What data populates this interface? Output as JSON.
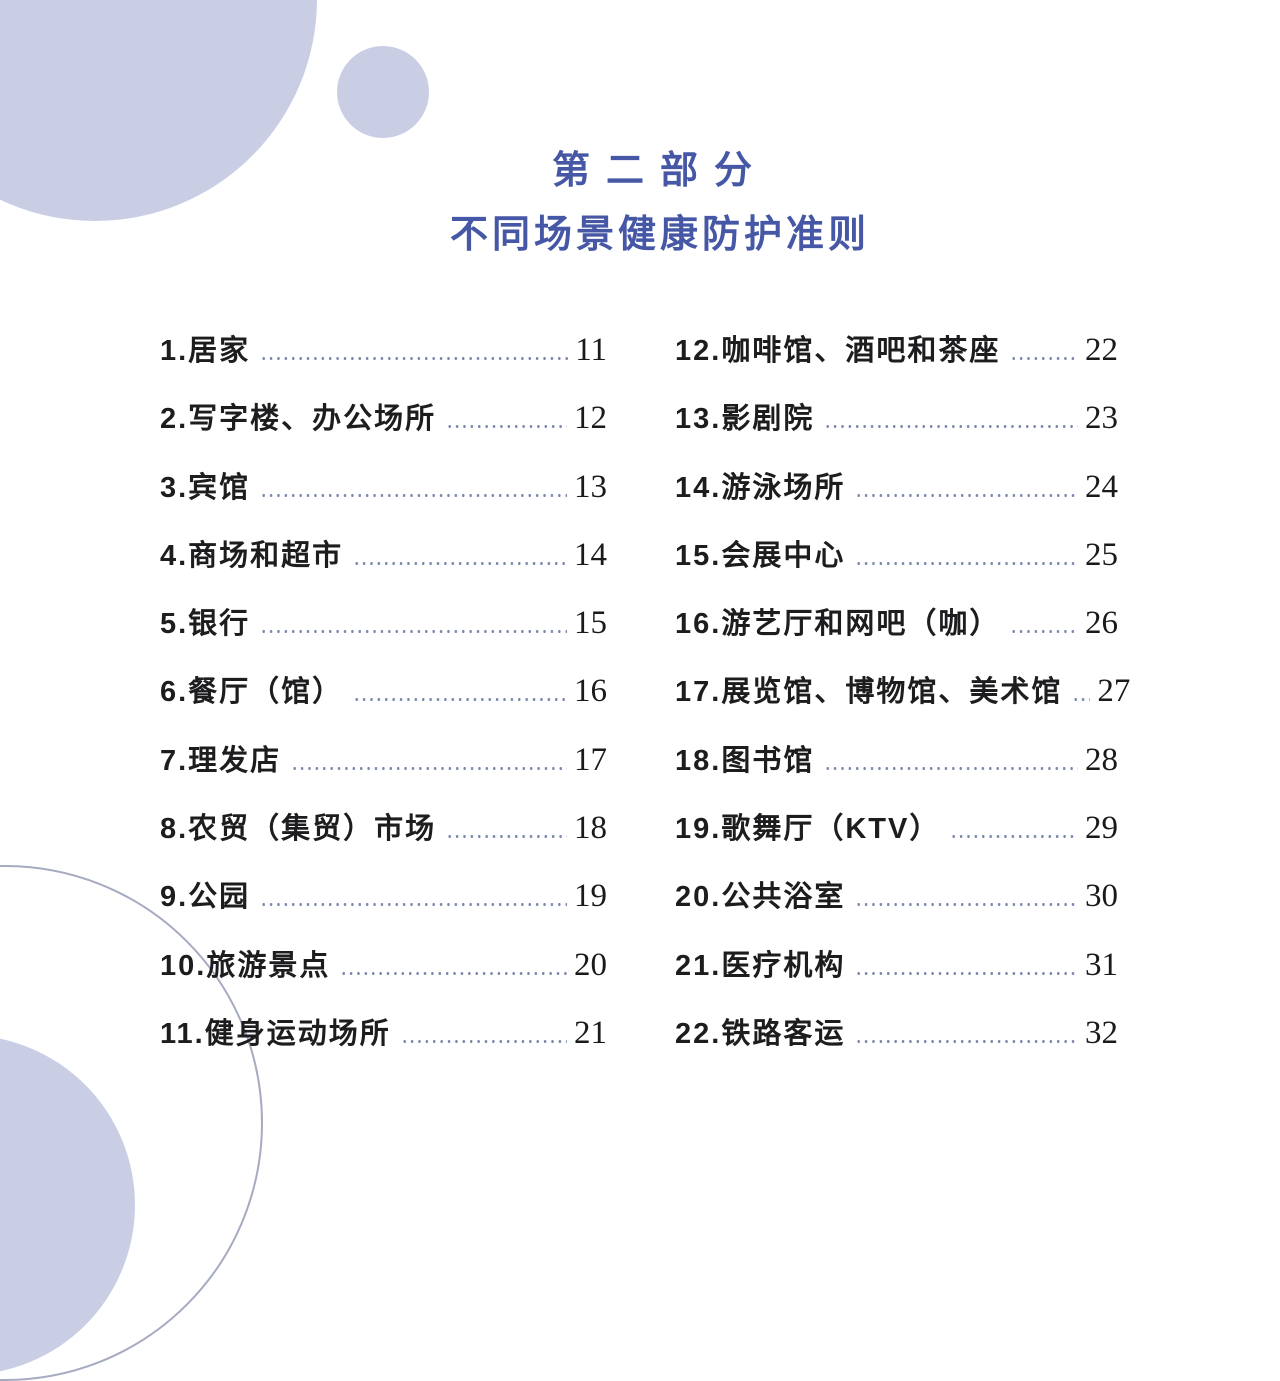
{
  "page": {
    "background": "#ffffff",
    "title_color": "#4557a5",
    "label_color": "#1d1d1f",
    "dot_leader_color": "#7d87ae",
    "circle_fill_color": "#c9cee5",
    "circle_outline_color": "#a6abc2",
    "title_line1": "第二部分",
    "title_line2": "不同场景健康防护准则"
  },
  "toc": {
    "left": [
      {
        "label": "1.居家",
        "page": "11"
      },
      {
        "label": "2.写字楼、办公场所",
        "page": "12"
      },
      {
        "label": "3.宾馆",
        "page": "13"
      },
      {
        "label": "4.商场和超市",
        "page": "14"
      },
      {
        "label": "5.银行",
        "page": "15"
      },
      {
        "label": "6.餐厅（馆）",
        "page": "16"
      },
      {
        "label": "7.理发店",
        "page": "17"
      },
      {
        "label": "8.农贸（集贸）市场",
        "page": "18"
      },
      {
        "label": "9.公园",
        "page": "19"
      },
      {
        "label": "10.旅游景点",
        "page": "20"
      },
      {
        "label": "11.健身运动场所",
        "page": "21"
      }
    ],
    "right": [
      {
        "label": "12.咖啡馆、酒吧和茶座",
        "page": "22"
      },
      {
        "label": "13.影剧院",
        "page": "23"
      },
      {
        "label": "14.游泳场所",
        "page": "24"
      },
      {
        "label": "15.会展中心",
        "page": "25"
      },
      {
        "label": "16.游艺厅和网吧（咖）",
        "page": "26"
      },
      {
        "label": "17.展览馆、博物馆、美术馆",
        "page": "27"
      },
      {
        "label": "18.图书馆",
        "page": "28"
      },
      {
        "label": "19.歌舞厅（KTV）",
        "page": "29"
      },
      {
        "label": "20.公共浴室",
        "page": "30"
      },
      {
        "label": "21.医疗机构",
        "page": "31"
      },
      {
        "label": "22.铁路客运",
        "page": "32"
      }
    ]
  }
}
